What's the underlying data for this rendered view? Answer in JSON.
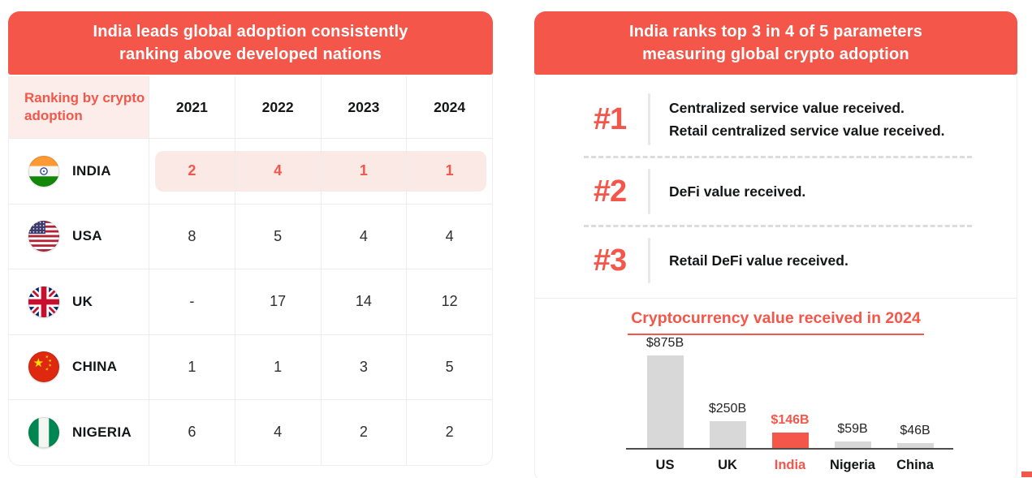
{
  "colors": {
    "accent": "#F4574A",
    "highlight_bg": "#FBE9E6",
    "bar_gray": "#D8D8D8"
  },
  "left_panel": {
    "title_line1": "India leads global adoption consistently",
    "title_line2": "ranking above developed nations",
    "table": {
      "corner_label": "Ranking by crypto adoption",
      "years": [
        "2021",
        "2022",
        "2023",
        "2024"
      ],
      "rows": [
        {
          "country": "INDIA",
          "flag": "india-flag",
          "values": [
            "2",
            "4",
            "1",
            "1"
          ],
          "highlight": true
        },
        {
          "country": "USA",
          "flag": "usa-flag",
          "values": [
            "8",
            "5",
            "4",
            "4"
          ],
          "highlight": false
        },
        {
          "country": "UK",
          "flag": "uk-flag",
          "values": [
            "-",
            "17",
            "14",
            "12"
          ],
          "highlight": false
        },
        {
          "country": "CHINA",
          "flag": "china-flag",
          "values": [
            "1",
            "1",
            "3",
            "5"
          ],
          "highlight": false
        },
        {
          "country": "NIGERIA",
          "flag": "nigeria-flag",
          "values": [
            "6",
            "4",
            "2",
            "2"
          ],
          "highlight": false
        }
      ]
    }
  },
  "right_panel": {
    "title_line1": "India ranks top 3 in 4 of 5 parameters",
    "title_line2": "measuring global crypto adoption",
    "parameters": [
      {
        "rank": "#1",
        "lines": [
          "Centralized service value received.",
          "Retail centralized service value received."
        ]
      },
      {
        "rank": "#2",
        "lines": [
          "DeFi value received."
        ]
      },
      {
        "rank": "#3",
        "lines": [
          "Retail DeFi value received."
        ]
      }
    ]
  },
  "chart_data": {
    "type": "bar",
    "title": "Cryptocurrency value received in 2024",
    "categories": [
      "US",
      "UK",
      "India",
      "Nigeria",
      "China"
    ],
    "values": [
      875,
      250,
      146,
      59,
      46
    ],
    "value_labels": [
      "$875B",
      "$250B",
      "$146B",
      "$59B",
      "$46B"
    ],
    "unit": "USD billions",
    "highlight_category": "India",
    "ylim": [
      0,
      875
    ],
    "grid": false,
    "legend": false,
    "bar_color": "#D8D8D8",
    "highlight_color": "#F4574A"
  }
}
